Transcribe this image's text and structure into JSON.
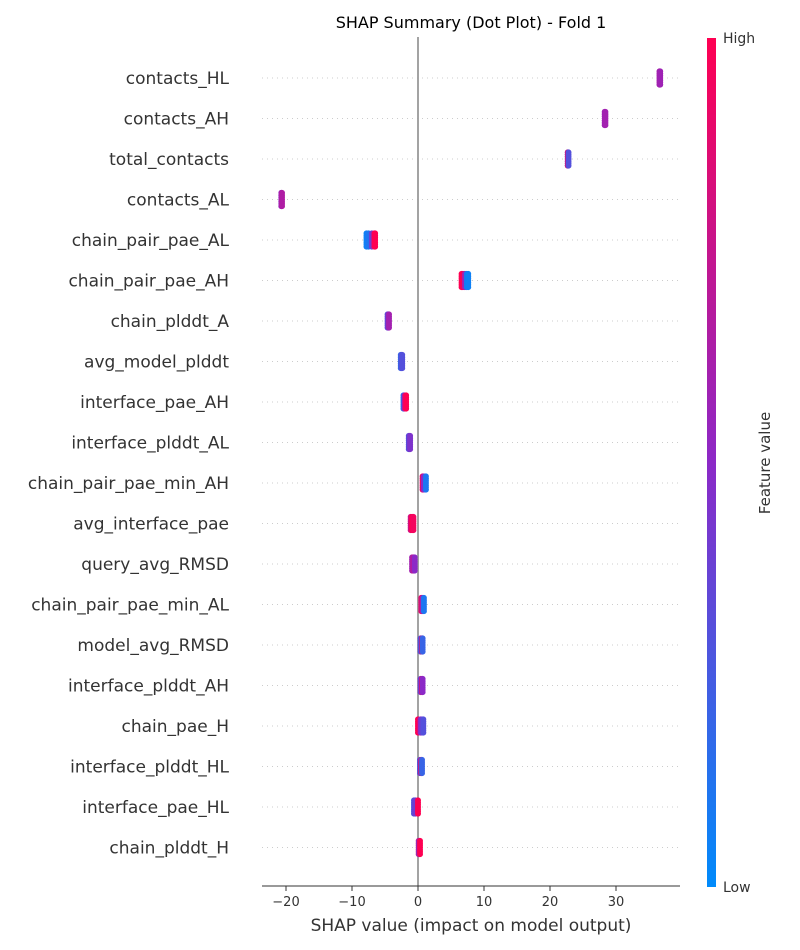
{
  "chart_data": {
    "type": "scatter",
    "subtype": "shap-summary-dot-plot",
    "title": "SHAP Summary (Dot Plot) - Fold 1",
    "xlabel": "SHAP value (impact on model output)",
    "ylabel": "",
    "xlim": [
      -23,
      40
    ],
    "xticks": [
      -20,
      -10,
      0,
      10,
      20,
      30
    ],
    "grid": false,
    "colorbar": {
      "label": "Feature value",
      "high_label": "High",
      "low_label": "Low",
      "low_color": "#008bfb",
      "mid_color": "#8c29c7",
      "high_color": "#ff0052"
    },
    "features": [
      {
        "name": "contacts_HL",
        "points": [
          [
            36.6,
            0.6
          ],
          [
            36.6,
            0.62
          ],
          [
            36.7,
            0.58
          ]
        ]
      },
      {
        "name": "contacts_AH",
        "points": [
          [
            28.3,
            0.55
          ],
          [
            28.3,
            0.58
          ],
          [
            28.4,
            0.6
          ]
        ]
      },
      {
        "name": "total_contacts",
        "points": [
          [
            22.7,
            0.2
          ],
          [
            22.7,
            0.95
          ],
          [
            22.8,
            0.3
          ]
        ]
      },
      {
        "name": "contacts_AL",
        "points": [
          [
            -20.7,
            0.5
          ],
          [
            -20.7,
            0.55
          ],
          [
            -20.6,
            0.65
          ]
        ]
      },
      {
        "name": "chain_pair_pae_AL",
        "points": [
          [
            -7.8,
            0.05
          ],
          [
            -7.5,
            0.1
          ],
          [
            -7.0,
            0.4
          ],
          [
            -6.6,
            0.95
          ],
          [
            -6.5,
            1.0
          ]
        ]
      },
      {
        "name": "chain_pair_pae_AH",
        "points": [
          [
            6.6,
            1.0
          ],
          [
            6.8,
            0.98
          ],
          [
            7.1,
            0.6
          ],
          [
            7.4,
            0.1
          ],
          [
            7.6,
            0.05
          ]
        ]
      },
      {
        "name": "chain_plddt_A",
        "points": [
          [
            -4.6,
            0.35
          ],
          [
            -4.5,
            0.4
          ],
          [
            -4.4,
            0.6
          ]
        ]
      },
      {
        "name": "avg_model_plddt",
        "points": [
          [
            -2.6,
            0.2
          ],
          [
            -2.5,
            0.25
          ],
          [
            -2.4,
            0.3
          ]
        ]
      },
      {
        "name": "interface_pae_AH",
        "points": [
          [
            -2.2,
            0.2
          ],
          [
            -2.0,
            0.7
          ],
          [
            -1.8,
            1.0
          ]
        ]
      },
      {
        "name": "interface_plddt_AL",
        "points": [
          [
            -1.4,
            0.3
          ],
          [
            -1.3,
            0.35
          ],
          [
            -1.2,
            0.45
          ]
        ]
      },
      {
        "name": "chain_pair_pae_min_AH",
        "points": [
          [
            0.7,
            0.9
          ],
          [
            0.9,
            0.5
          ],
          [
            1.2,
            0.1
          ]
        ]
      },
      {
        "name": "avg_interface_pae",
        "points": [
          [
            -1.1,
            0.8
          ],
          [
            -0.9,
            1.0
          ],
          [
            -0.7,
            0.95
          ]
        ]
      },
      {
        "name": "query_avg_RMSD",
        "points": [
          [
            -0.9,
            0.6
          ],
          [
            -0.7,
            0.7
          ],
          [
            -0.5,
            0.5
          ]
        ]
      },
      {
        "name": "chain_pair_pae_min_AL",
        "points": [
          [
            0.5,
            0.9
          ],
          [
            0.7,
            0.6
          ],
          [
            0.9,
            0.1
          ]
        ]
      },
      {
        "name": "model_avg_RMSD",
        "points": [
          [
            0.4,
            0.3
          ],
          [
            0.6,
            0.9
          ],
          [
            0.7,
            0.2
          ]
        ]
      },
      {
        "name": "interface_plddt_AH",
        "points": [
          [
            0.4,
            0.4
          ],
          [
            0.6,
            0.9
          ],
          [
            0.7,
            0.5
          ]
        ]
      },
      {
        "name": "chain_pae_H",
        "points": [
          [
            0.0,
            1.0
          ],
          [
            0.4,
            0.5
          ],
          [
            0.6,
            0.4
          ],
          [
            0.8,
            0.3
          ]
        ]
      },
      {
        "name": "interface_plddt_HL",
        "points": [
          [
            0.3,
            0.3
          ],
          [
            0.5,
            0.95
          ],
          [
            0.6,
            0.2
          ]
        ]
      },
      {
        "name": "interface_pae_HL",
        "points": [
          [
            -0.6,
            0.3
          ],
          [
            -0.4,
            0.4
          ],
          [
            0.0,
            1.0
          ]
        ]
      },
      {
        "name": "chain_plddt_H",
        "points": [
          [
            0.1,
            0.8
          ],
          [
            0.2,
            0.4
          ],
          [
            0.3,
            1.0
          ]
        ]
      }
    ]
  }
}
